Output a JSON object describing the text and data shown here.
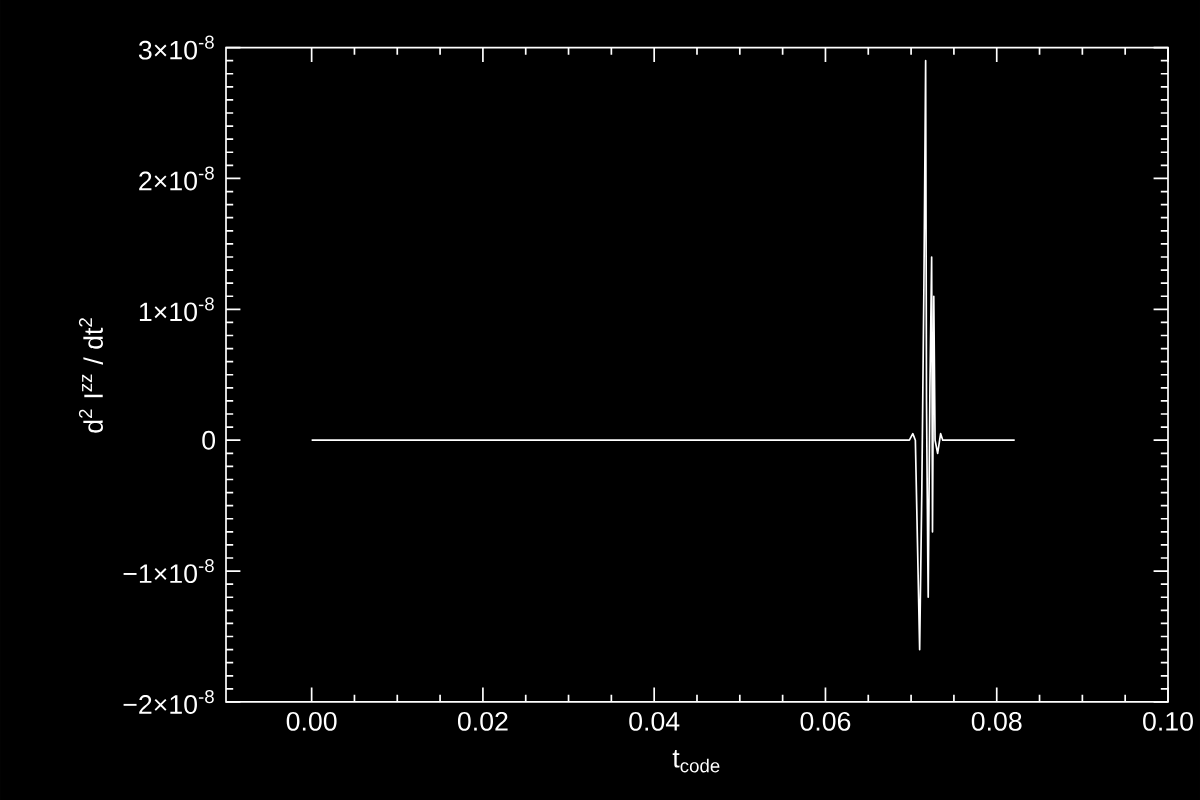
{
  "chart_data": {
    "type": "line",
    "xlabel": "t$_{code}$",
    "ylabel": "d$^{2}$ I$^{zz}$ / dt$^{2}$",
    "x": [
      0,
      0.0698,
      0.0702,
      0.0705,
      0.071,
      0.07125,
      0.0715,
      0.0717,
      0.0718,
      0.07195,
      0.072,
      0.0722,
      0.0724,
      0.0725,
      0.07265,
      0.0728,
      0.0731,
      0.07345,
      0.0737,
      0.0821
    ],
    "values": [
      0,
      0,
      5e-10,
      0,
      -1.6e-08,
      -4e-09,
      1.2e-08,
      2.9e-08,
      3e-09,
      -9e-09,
      -1.2e-08,
      4e-09,
      1.4e-08,
      -7e-09,
      1.1e-08,
      0,
      -1e-09,
      5e-10,
      0,
      0
    ],
    "color": "#ffffff",
    "xlim": [
      -0.01,
      0.1
    ],
    "ylim": [
      -2e-08,
      3e-08
    ],
    "xticks": [
      {
        "value": 0,
        "label": "0.00"
      },
      {
        "value": 0.02,
        "label": "0.02"
      },
      {
        "value": 0.04,
        "label": "0.04"
      },
      {
        "value": 0.06,
        "label": "0.06"
      },
      {
        "value": 0.08,
        "label": "0.08"
      },
      {
        "value": 0.1,
        "label": "0.10"
      }
    ],
    "yticks": [
      {
        "value": -2e-08,
        "label": "−2×10$^{-8}$"
      },
      {
        "value": -1e-08,
        "label": "−1×10$^{-8}$"
      },
      0,
      {
        "value": 1e-08,
        "label": "1×10$^{-8}$"
      },
      {
        "value": 2e-08,
        "label": "2×10$^{-8}$"
      },
      {
        "value": 3e-08,
        "label": "3×10$^{-8}$"
      }
    ]
  }
}
